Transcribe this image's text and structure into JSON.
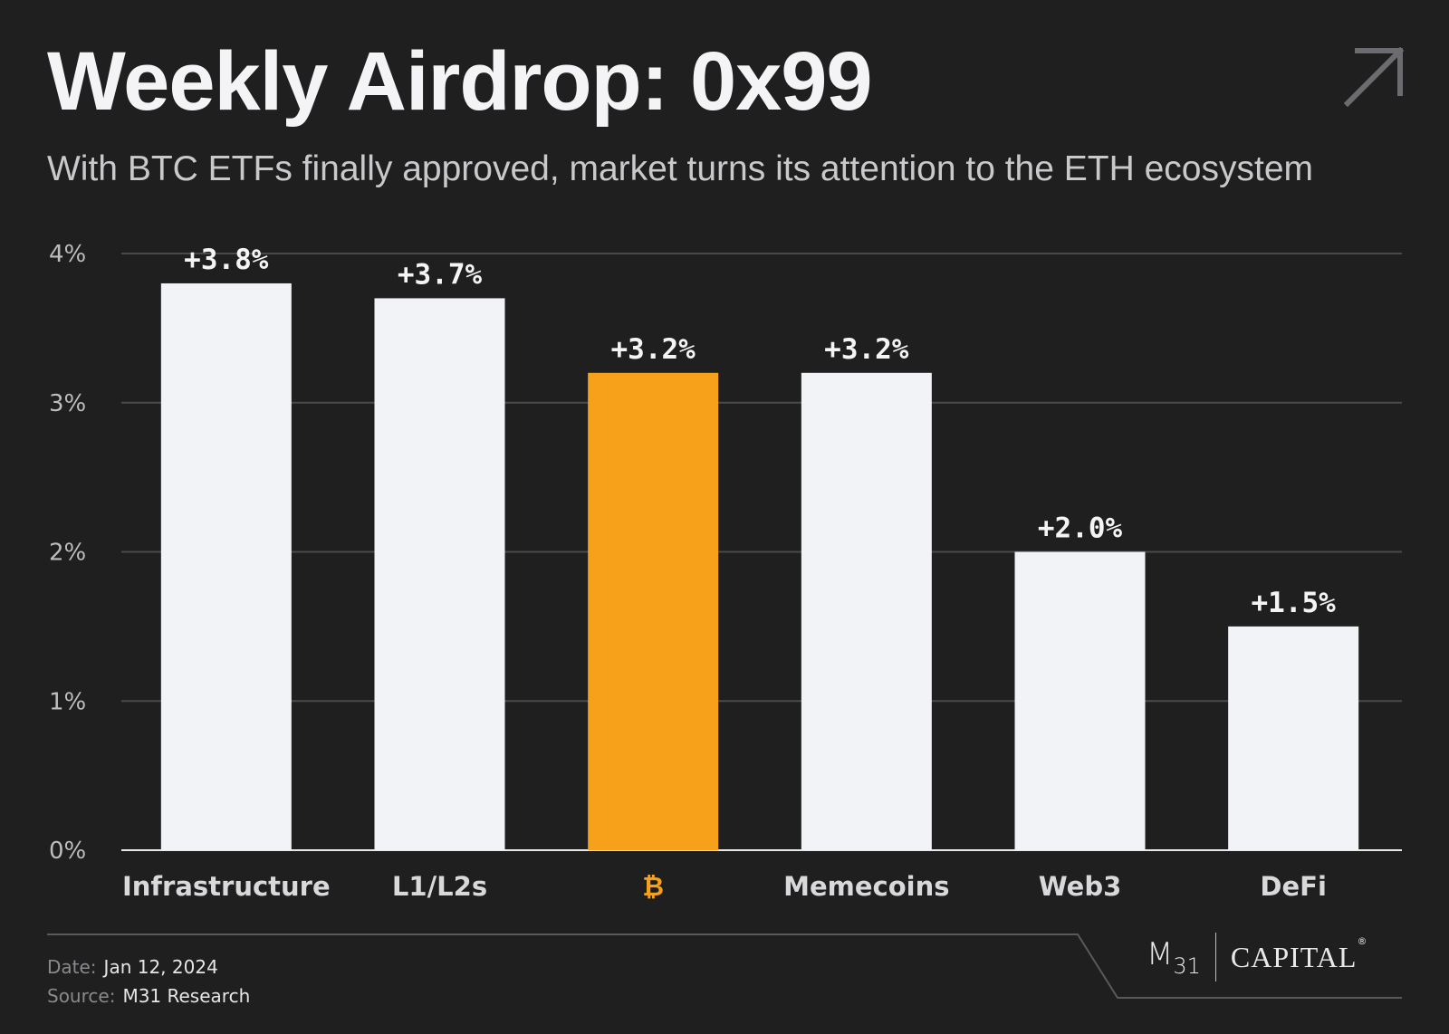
{
  "header": {
    "title": "Weekly Airdrop: 0x99",
    "subtitle": "With BTC ETFs finally approved, market turns its attention to the ETH ecosystem",
    "arrow_icon": "arrow-up-right-icon"
  },
  "chart_data": {
    "type": "bar",
    "title": "Weekly Airdrop: 0x99",
    "subtitle": "With BTC ETFs finally approved, market turns its attention to the ETH ecosystem",
    "categories": [
      "Infrastructure",
      "L1/L2s",
      "₿",
      "Memecoins",
      "Web3",
      "DeFi"
    ],
    "values": [
      3.8,
      3.7,
      3.2,
      3.2,
      2.0,
      1.5
    ],
    "data_labels": [
      "+3.8%",
      "+3.7%",
      "+3.2%",
      "+3.2%",
      "+2.0%",
      "+1.5%"
    ],
    "highlight_index": 2,
    "ylim": [
      0,
      4
    ],
    "yticks": [
      0,
      1,
      2,
      3,
      4
    ],
    "ytick_labels": [
      "0%",
      "1%",
      "2%",
      "3%",
      "4%"
    ],
    "xlabel": "",
    "ylabel": "",
    "grid": true,
    "colors": {
      "bar": "#f2f3f7",
      "highlight": "#f7a11a",
      "grid": "#4a4a4a",
      "axis": "#e8e8ea",
      "tick": "#bdbdc0"
    }
  },
  "footer": {
    "date_label": "Date:",
    "date_value": "Jan 12, 2024",
    "source_label": "Source:",
    "source_value": "M31 Research"
  },
  "logo": {
    "m": "M",
    "num": "31",
    "capital": "CAPITAL",
    "reg": "®"
  }
}
